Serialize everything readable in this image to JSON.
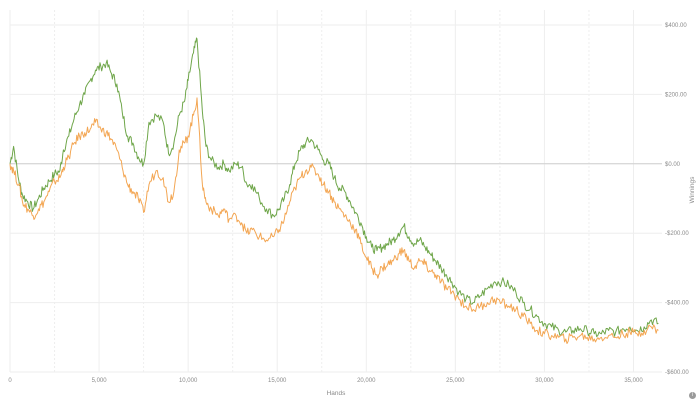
{
  "chart_data": {
    "type": "line",
    "title": "",
    "xlabel": "Hands",
    "ylabel": "Winnings",
    "xlim": [
      0,
      36600
    ],
    "ylim": [
      -600,
      400
    ],
    "x_ticks": [
      0,
      5000,
      10000,
      15000,
      20000,
      25000,
      30000,
      35000
    ],
    "x_tick_labels": [
      "0",
      "5,000",
      "10,000",
      "15,000",
      "20,000",
      "25,000",
      "30,000",
      "35,000"
    ],
    "y_ticks": [
      400,
      200,
      0,
      -200,
      -400,
      -600
    ],
    "y_tick_labels": [
      "$400.00",
      "$200.00",
      "$0.00",
      "-$200.00",
      "-$400.00",
      "-$600.00"
    ],
    "grid": true,
    "legend": "none",
    "series": [
      {
        "color": "#6fa64a",
        "points": [
          [
            0,
            0
          ],
          [
            200,
            50
          ],
          [
            500,
            -50
          ],
          [
            700,
            -90
          ],
          [
            1000,
            -110
          ],
          [
            1300,
            -130
          ],
          [
            1600,
            -100
          ],
          [
            1900,
            -70
          ],
          [
            2200,
            -50
          ],
          [
            2500,
            -30
          ],
          [
            2800,
            -20
          ],
          [
            3000,
            40
          ],
          [
            3300,
            80
          ],
          [
            3600,
            130
          ],
          [
            3900,
            170
          ],
          [
            4200,
            200
          ],
          [
            4500,
            240
          ],
          [
            4800,
            270
          ],
          [
            5100,
            280
          ],
          [
            5400,
            290
          ],
          [
            5700,
            260
          ],
          [
            6000,
            230
          ],
          [
            6300,
            150
          ],
          [
            6600,
            80
          ],
          [
            6900,
            60
          ],
          [
            7200,
            20
          ],
          [
            7500,
            0
          ],
          [
            7800,
            120
          ],
          [
            8200,
            140
          ],
          [
            8600,
            120
          ],
          [
            8900,
            30
          ],
          [
            9200,
            60
          ],
          [
            9500,
            140
          ],
          [
            9800,
            180
          ],
          [
            10000,
            240
          ],
          [
            10300,
            320
          ],
          [
            10500,
            360
          ],
          [
            10800,
            150
          ],
          [
            11000,
            50
          ],
          [
            11300,
            10
          ],
          [
            11700,
            -10
          ],
          [
            12000,
            0
          ],
          [
            12300,
            -20
          ],
          [
            12700,
            0
          ],
          [
            13000,
            -10
          ],
          [
            13300,
            -60
          ],
          [
            13600,
            -60
          ],
          [
            14000,
            -100
          ],
          [
            14400,
            -130
          ],
          [
            14800,
            -150
          ],
          [
            15100,
            -130
          ],
          [
            15400,
            -100
          ],
          [
            15700,
            -60
          ],
          [
            16000,
            0
          ],
          [
            16300,
            40
          ],
          [
            16600,
            60
          ],
          [
            16900,
            70
          ],
          [
            17300,
            40
          ],
          [
            17600,
            10
          ],
          [
            17900,
            0
          ],
          [
            18200,
            -40
          ],
          [
            18500,
            -70
          ],
          [
            18800,
            -80
          ],
          [
            19100,
            -110
          ],
          [
            19400,
            -140
          ],
          [
            19700,
            -170
          ],
          [
            20000,
            -210
          ],
          [
            20300,
            -240
          ],
          [
            20600,
            -250
          ],
          [
            20900,
            -240
          ],
          [
            21200,
            -230
          ],
          [
            21500,
            -220
          ],
          [
            21800,
            -200
          ],
          [
            22100,
            -180
          ],
          [
            22400,
            -210
          ],
          [
            22700,
            -230
          ],
          [
            23000,
            -220
          ],
          [
            23300,
            -240
          ],
          [
            23600,
            -260
          ],
          [
            23900,
            -280
          ],
          [
            24200,
            -300
          ],
          [
            24500,
            -320
          ],
          [
            24800,
            -340
          ],
          [
            25200,
            -370
          ],
          [
            25600,
            -390
          ],
          [
            26000,
            -400
          ],
          [
            26400,
            -380
          ],
          [
            26800,
            -360
          ],
          [
            27200,
            -340
          ],
          [
            27600,
            -340
          ],
          [
            28000,
            -350
          ],
          [
            28400,
            -370
          ],
          [
            28800,
            -400
          ],
          [
            29200,
            -420
          ],
          [
            29600,
            -440
          ],
          [
            30000,
            -460
          ],
          [
            30400,
            -470
          ],
          [
            30800,
            -480
          ],
          [
            31200,
            -485
          ],
          [
            31600,
            -480
          ],
          [
            32000,
            -475
          ],
          [
            32400,
            -480
          ],
          [
            32800,
            -490
          ],
          [
            33200,
            -490
          ],
          [
            33600,
            -480
          ],
          [
            34000,
            -485
          ],
          [
            34400,
            -475
          ],
          [
            34800,
            -470
          ],
          [
            35200,
            -480
          ],
          [
            35600,
            -470
          ],
          [
            36000,
            -450
          ],
          [
            36400,
            -460
          ]
        ]
      },
      {
        "color": "#f3a653",
        "points": [
          [
            0,
            0
          ],
          [
            200,
            -20
          ],
          [
            500,
            -60
          ],
          [
            700,
            -110
          ],
          [
            1000,
            -130
          ],
          [
            1300,
            -150
          ],
          [
            1600,
            -130
          ],
          [
            1900,
            -110
          ],
          [
            2200,
            -80
          ],
          [
            2500,
            -50
          ],
          [
            2800,
            -40
          ],
          [
            3000,
            -10
          ],
          [
            3300,
            20
          ],
          [
            3600,
            60
          ],
          [
            3900,
            80
          ],
          [
            4200,
            90
          ],
          [
            4500,
            100
          ],
          [
            4800,
            120
          ],
          [
            5100,
            100
          ],
          [
            5400,
            90
          ],
          [
            5700,
            70
          ],
          [
            6000,
            40
          ],
          [
            6300,
            -10
          ],
          [
            6600,
            -60
          ],
          [
            6900,
            -80
          ],
          [
            7200,
            -100
          ],
          [
            7500,
            -140
          ],
          [
            7800,
            -60
          ],
          [
            8200,
            -20
          ],
          [
            8600,
            -40
          ],
          [
            8900,
            -110
          ],
          [
            9200,
            -80
          ],
          [
            9500,
            40
          ],
          [
            9800,
            60
          ],
          [
            10000,
            80
          ],
          [
            10300,
            140
          ],
          [
            10500,
            190
          ],
          [
            10800,
            -60
          ],
          [
            11000,
            -110
          ],
          [
            11300,
            -130
          ],
          [
            11700,
            -150
          ],
          [
            12000,
            -130
          ],
          [
            12300,
            -160
          ],
          [
            12700,
            -150
          ],
          [
            13000,
            -170
          ],
          [
            13300,
            -200
          ],
          [
            13600,
            -190
          ],
          [
            14000,
            -210
          ],
          [
            14400,
            -220
          ],
          [
            14800,
            -210
          ],
          [
            15100,
            -190
          ],
          [
            15400,
            -160
          ],
          [
            15700,
            -110
          ],
          [
            16000,
            -70
          ],
          [
            16300,
            -40
          ],
          [
            16600,
            -20
          ],
          [
            16900,
            -10
          ],
          [
            17300,
            -30
          ],
          [
            17600,
            -60
          ],
          [
            17900,
            -80
          ],
          [
            18200,
            -110
          ],
          [
            18500,
            -130
          ],
          [
            18800,
            -150
          ],
          [
            19100,
            -170
          ],
          [
            19400,
            -190
          ],
          [
            19700,
            -230
          ],
          [
            20000,
            -270
          ],
          [
            20300,
            -300
          ],
          [
            20600,
            -320
          ],
          [
            20900,
            -300
          ],
          [
            21200,
            -290
          ],
          [
            21500,
            -280
          ],
          [
            21800,
            -260
          ],
          [
            22100,
            -250
          ],
          [
            22400,
            -280
          ],
          [
            22700,
            -300
          ],
          [
            23000,
            -280
          ],
          [
            23300,
            -290
          ],
          [
            23600,
            -310
          ],
          [
            23900,
            -320
          ],
          [
            24200,
            -340
          ],
          [
            24500,
            -360
          ],
          [
            24800,
            -370
          ],
          [
            25200,
            -390
          ],
          [
            25600,
            -410
          ],
          [
            26000,
            -420
          ],
          [
            26400,
            -410
          ],
          [
            26800,
            -400
          ],
          [
            27200,
            -390
          ],
          [
            27600,
            -400
          ],
          [
            28000,
            -410
          ],
          [
            28400,
            -420
          ],
          [
            28800,
            -440
          ],
          [
            29200,
            -460
          ],
          [
            29600,
            -480
          ],
          [
            30000,
            -490
          ],
          [
            30400,
            -495
          ],
          [
            30800,
            -500
          ],
          [
            31200,
            -505
          ],
          [
            31600,
            -500
          ],
          [
            32000,
            -495
          ],
          [
            32400,
            -500
          ],
          [
            32800,
            -505
          ],
          [
            33200,
            -500
          ],
          [
            33600,
            -495
          ],
          [
            34000,
            -500
          ],
          [
            34400,
            -490
          ],
          [
            34800,
            -485
          ],
          [
            35200,
            -490
          ],
          [
            35600,
            -480
          ],
          [
            36000,
            -470
          ],
          [
            36400,
            -480
          ]
        ]
      }
    ]
  }
}
